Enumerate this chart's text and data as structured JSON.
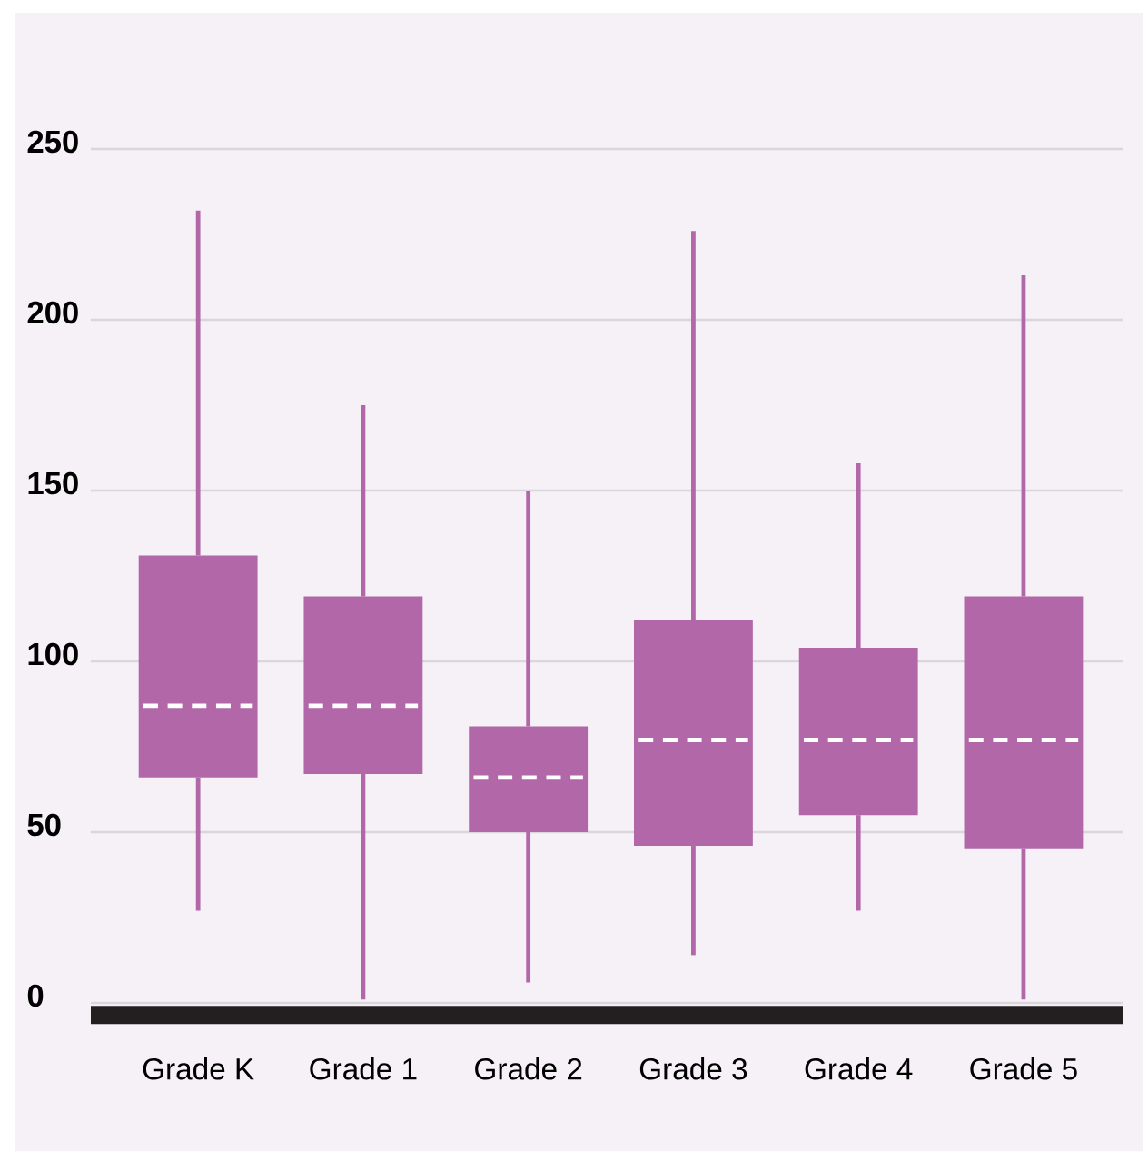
{
  "chart_data": {
    "type": "box",
    "categories": [
      "Grade K",
      "Grade 1",
      "Grade 2",
      "Grade 3",
      "Grade 4",
      "Grade 5"
    ],
    "boxes": [
      {
        "low": 27,
        "q1": 66,
        "median": 87,
        "q3": 131,
        "high": 232
      },
      {
        "low": 1,
        "q1": 67,
        "median": 87,
        "q3": 119,
        "high": 175
      },
      {
        "low": 6,
        "q1": 50,
        "median": 66,
        "q3": 81,
        "high": 150
      },
      {
        "low": 14,
        "q1": 46,
        "median": 77,
        "q3": 112,
        "high": 226
      },
      {
        "low": 27,
        "q1": 55,
        "median": 77,
        "q3": 104,
        "high": 158
      },
      {
        "low": 1,
        "q1": 45,
        "median": 77,
        "q3": 119,
        "high": 213
      }
    ],
    "color": "#b267a8",
    "ylim": [
      0,
      250
    ],
    "yticks": [
      0,
      50,
      100,
      150,
      200,
      250
    ],
    "grid": "y"
  }
}
